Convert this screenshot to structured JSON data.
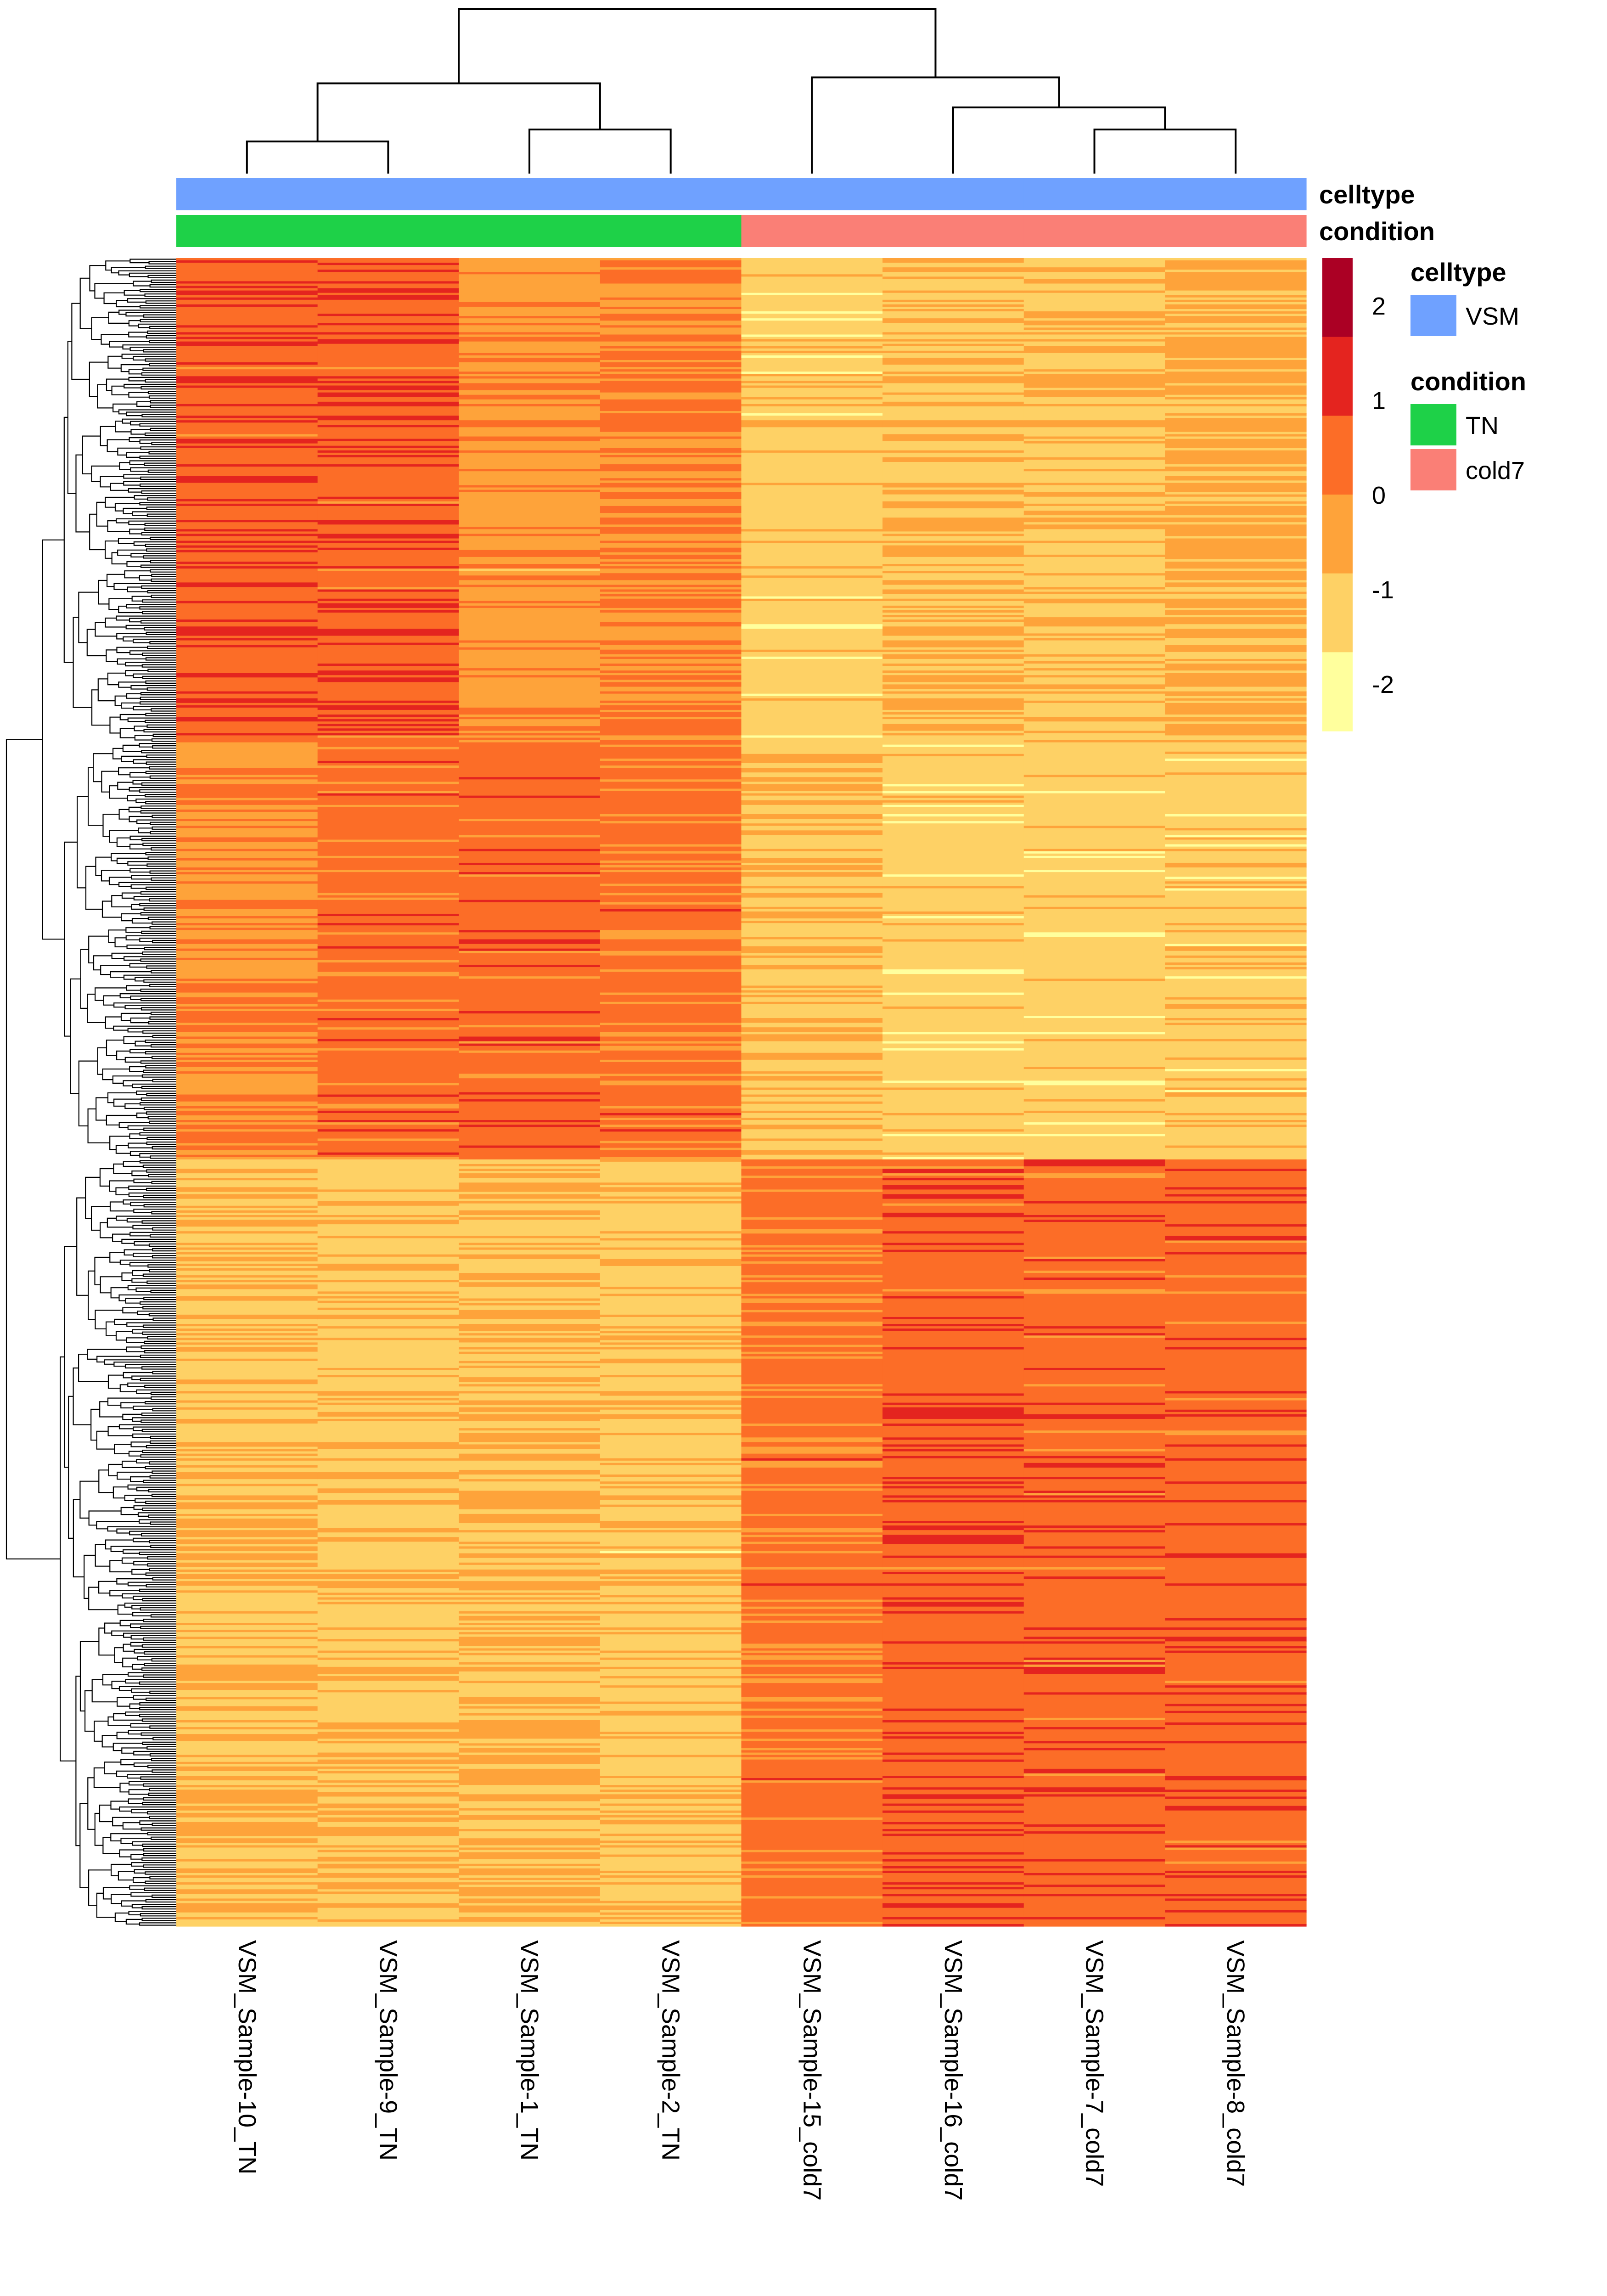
{
  "chart_data": {
    "type": "heatmap",
    "title": "",
    "columns": [
      "VSM_Sample-10_TN",
      "VSM_Sample-9_TN",
      "VSM_Sample-1_TN",
      "VSM_Sample-2_TN",
      "VSM_Sample-15_cold7",
      "VSM_Sample-16_cold7",
      "VSM_Sample-7_cold7",
      "VSM_Sample-8_cold7"
    ],
    "annotation_tracks": [
      {
        "name": "celltype",
        "values": [
          "VSM",
          "VSM",
          "VSM",
          "VSM",
          "VSM",
          "VSM",
          "VSM",
          "VSM"
        ]
      },
      {
        "name": "condition",
        "values": [
          "TN",
          "TN",
          "TN",
          "TN",
          "cold7",
          "cold7",
          "cold7",
          "cold7"
        ]
      }
    ],
    "annotation_legends": [
      {
        "title": "celltype",
        "items": [
          {
            "label": "VSM",
            "color": "#6fa1ff"
          }
        ]
      },
      {
        "title": "condition",
        "items": [
          {
            "label": "TN",
            "color": "#1ed148"
          },
          {
            "label": "cold7",
            "color": "#fa7f76"
          }
        ]
      }
    ],
    "color_scale": {
      "breaks": [
        -2.5,
        -1.5,
        -0.5,
        0.5,
        1.5,
        2.5
      ],
      "colors": [
        "#ffff9d",
        "#fed165",
        "#fea33a",
        "#fc6d27",
        "#e4241f",
        "#ab0024"
      ],
      "ticks": [
        2,
        1,
        0,
        -1,
        -2
      ],
      "tick_labels": [
        "2",
        "1",
        "0",
        "-1",
        "-2"
      ]
    },
    "row_dendrogram": true,
    "column_dendrogram": true,
    "row_blocks": [
      {
        "fraction": 0.29,
        "values": [
          1.2,
          1.25,
          0.3,
          0.5,
          -1.0,
          -0.5,
          -0.7,
          -0.3
        ]
      },
      {
        "fraction": 0.25,
        "values": [
          0.4,
          1.0,
          1.05,
          0.8,
          -0.6,
          -1.0,
          -1.0,
          -0.9
        ]
      },
      {
        "fraction": 0.46,
        "values": [
          -0.6,
          -0.7,
          -0.5,
          -0.7,
          0.8,
          1.2,
          1.1,
          1.1
        ]
      }
    ],
    "column_dendrogram_merges": [
      [
        0,
        1,
        0.16
      ],
      [
        2,
        3,
        0.22
      ],
      [
        -1,
        -2,
        0.45
      ],
      [
        6,
        7,
        0.22
      ],
      [
        5,
        -4,
        0.33
      ],
      [
        4,
        -5,
        0.48
      ],
      [
        -3,
        -6,
        0.82
      ]
    ]
  },
  "colors": {
    "stroke": "#000000"
  }
}
